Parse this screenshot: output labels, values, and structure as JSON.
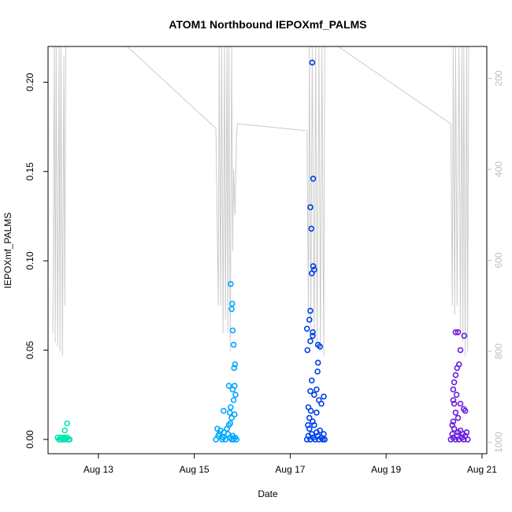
{
  "chart_data": {
    "type": "scatter",
    "title": "ATOM1 Northbound IEPOXmf_PALMS",
    "xlabel": "Date",
    "ylabel": "IEPOXmf_PALMS",
    "x_unit": "days in August 2016",
    "xlim": [
      11.95,
      21.1
    ],
    "ylim": [
      -0.008,
      0.22
    ],
    "x_ticks": [
      {
        "value": 13,
        "label": "Aug 13"
      },
      {
        "value": 15,
        "label": "Aug 15"
      },
      {
        "value": 17,
        "label": "Aug 17"
      },
      {
        "value": 19,
        "label": "Aug 19"
      },
      {
        "value": 21,
        "label": "Aug 21"
      }
    ],
    "y_ticks": [
      {
        "value": 0.0,
        "label": "0.00"
      },
      {
        "value": 0.05,
        "label": "0.05"
      },
      {
        "value": 0.1,
        "label": "0.10"
      },
      {
        "value": 0.15,
        "label": "0.15"
      },
      {
        "value": 0.2,
        "label": "0.20"
      }
    ],
    "secondary_y": {
      "label": "",
      "range_top": 130,
      "range_bottom": 1025,
      "reversed": true,
      "ticks": [
        200,
        400,
        600,
        800,
        1000
      ],
      "color": "#bebebe"
    },
    "grid": false,
    "legend": "none",
    "series": [
      {
        "color": "#00e5b0",
        "points": [
          [
            12.15,
            0.001
          ],
          [
            12.2,
            0.0
          ],
          [
            12.22,
            0.001
          ],
          [
            12.25,
            0.0
          ],
          [
            12.28,
            0.001
          ],
          [
            12.3,
            0.0
          ],
          [
            12.32,
            0.0
          ],
          [
            12.35,
            0.001
          ],
          [
            12.38,
            0.0
          ],
          [
            12.4,
            0.0
          ],
          [
            12.3,
            0.005
          ],
          [
            12.35,
            0.009
          ],
          [
            12.18,
            0.0
          ],
          [
            12.26,
            0.0
          ],
          [
            12.33,
            0.001
          ]
        ]
      },
      {
        "color": "#00a8ff",
        "points": [
          [
            15.45,
            0.0
          ],
          [
            15.5,
            0.002
          ],
          [
            15.55,
            0.005
          ],
          [
            15.6,
            0.001
          ],
          [
            15.62,
            0.004
          ],
          [
            15.65,
            0.0
          ],
          [
            15.7,
            0.003
          ],
          [
            15.72,
            0.008
          ],
          [
            15.75,
            0.001
          ],
          [
            15.78,
            0.0
          ],
          [
            15.8,
            0.002
          ],
          [
            15.82,
            0.0
          ],
          [
            15.85,
            0.001
          ],
          [
            15.88,
            0.0
          ],
          [
            15.48,
            0.006
          ],
          [
            15.52,
            0.003
          ],
          [
            15.58,
            0.0
          ],
          [
            15.68,
            0.006
          ],
          [
            15.74,
            0.015
          ],
          [
            15.76,
            0.018
          ],
          [
            15.78,
            0.012
          ],
          [
            15.8,
            0.028
          ],
          [
            15.82,
            0.022
          ],
          [
            15.84,
            0.03
          ],
          [
            15.86,
            0.025
          ],
          [
            15.72,
            0.03
          ],
          [
            15.83,
            0.04
          ],
          [
            15.85,
            0.042
          ],
          [
            15.82,
            0.053
          ],
          [
            15.8,
            0.061
          ],
          [
            15.78,
            0.073
          ],
          [
            15.79,
            0.076
          ],
          [
            15.76,
            0.087
          ],
          [
            15.61,
            0.016
          ],
          [
            15.75,
            0.009
          ],
          [
            15.84,
            0.014
          ]
        ]
      },
      {
        "color": "#0040e8",
        "points": [
          [
            17.35,
            0.0
          ],
          [
            17.38,
            0.002
          ],
          [
            17.4,
            0.006
          ],
          [
            17.42,
            0.0
          ],
          [
            17.45,
            0.003
          ],
          [
            17.48,
            0.001
          ],
          [
            17.5,
            0.008
          ],
          [
            17.52,
            0.0
          ],
          [
            17.55,
            0.004
          ],
          [
            17.58,
            0.002
          ],
          [
            17.6,
            0.0
          ],
          [
            17.62,
            0.005
          ],
          [
            17.65,
            0.001
          ],
          [
            17.68,
            0.0
          ],
          [
            17.7,
            0.003
          ],
          [
            17.72,
            0.0
          ],
          [
            17.37,
            0.008
          ],
          [
            17.4,
            0.012
          ],
          [
            17.43,
            0.016
          ],
          [
            17.47,
            0.01
          ],
          [
            17.55,
            0.015
          ],
          [
            17.6,
            0.022
          ],
          [
            17.65,
            0.02
          ],
          [
            17.7,
            0.024
          ],
          [
            17.38,
            0.018
          ],
          [
            17.42,
            0.027
          ],
          [
            17.45,
            0.033
          ],
          [
            17.5,
            0.025
          ],
          [
            17.55,
            0.028
          ],
          [
            17.57,
            0.038
          ],
          [
            17.58,
            0.043
          ],
          [
            17.36,
            0.05
          ],
          [
            17.42,
            0.055
          ],
          [
            17.47,
            0.058
          ],
          [
            17.62,
            0.052
          ],
          [
            17.58,
            0.053
          ],
          [
            17.35,
            0.062
          ],
          [
            17.4,
            0.067
          ],
          [
            17.47,
            0.06
          ],
          [
            17.42,
            0.072
          ],
          [
            17.5,
            0.095
          ],
          [
            17.45,
            0.093
          ],
          [
            17.48,
            0.097
          ],
          [
            17.44,
            0.118
          ],
          [
            17.42,
            0.13
          ],
          [
            17.48,
            0.146
          ],
          [
            17.46,
            0.211
          ]
        ]
      },
      {
        "color": "#6a1de0",
        "points": [
          [
            20.35,
            0.0
          ],
          [
            20.38,
            0.003
          ],
          [
            20.4,
            0.001
          ],
          [
            20.42,
            0.006
          ],
          [
            20.45,
            0.0
          ],
          [
            20.48,
            0.002
          ],
          [
            20.5,
            0.004
          ],
          [
            20.52,
            0.0
          ],
          [
            20.55,
            0.005
          ],
          [
            20.58,
            0.001
          ],
          [
            20.6,
            0.003
          ],
          [
            20.62,
            0.0
          ],
          [
            20.65,
            0.002
          ],
          [
            20.68,
            0.004
          ],
          [
            20.7,
            0.0
          ],
          [
            20.4,
            0.01
          ],
          [
            20.42,
            0.02
          ],
          [
            20.45,
            0.015
          ],
          [
            20.5,
            0.012
          ],
          [
            20.47,
            0.025
          ],
          [
            20.4,
            0.028
          ],
          [
            20.42,
            0.032
          ],
          [
            20.45,
            0.036
          ],
          [
            20.48,
            0.04
          ],
          [
            20.52,
            0.042
          ],
          [
            20.4,
            0.022
          ],
          [
            20.55,
            0.02
          ],
          [
            20.62,
            0.017
          ],
          [
            20.65,
            0.016
          ],
          [
            20.45,
            0.06
          ],
          [
            20.5,
            0.06
          ],
          [
            20.55,
            0.05
          ],
          [
            20.63,
            0.058
          ],
          [
            20.38,
            0.008
          ]
        ]
      }
    ],
    "altitude_line": {
      "color": "#cccccc",
      "points": [
        [
          12.05,
          760
        ],
        [
          12.08,
          120
        ],
        [
          12.1,
          780
        ],
        [
          12.12,
          120
        ],
        [
          12.15,
          790
        ],
        [
          12.18,
          130
        ],
        [
          12.2,
          800
        ],
        [
          12.22,
          120
        ],
        [
          12.25,
          810
        ],
        [
          12.28,
          150
        ],
        [
          12.3,
          700
        ],
        [
          12.32,
          120
        ],
        [
          13.6,
          120
        ],
        [
          15.45,
          310
        ],
        [
          15.5,
          700
        ],
        [
          15.52,
          120
        ],
        [
          15.55,
          700
        ],
        [
          15.57,
          120
        ],
        [
          15.6,
          760
        ],
        [
          15.63,
          120
        ],
        [
          15.65,
          730
        ],
        [
          15.68,
          130
        ],
        [
          15.7,
          760
        ],
        [
          15.72,
          125
        ],
        [
          15.75,
          800
        ],
        [
          15.78,
          120
        ],
        [
          15.8,
          580
        ],
        [
          15.82,
          400
        ],
        [
          15.85,
          500
        ],
        [
          15.88,
          330
        ],
        [
          15.9,
          300
        ],
        [
          17.35,
          315
        ],
        [
          17.38,
          720
        ],
        [
          17.4,
          125
        ],
        [
          17.43,
          750
        ],
        [
          17.46,
          120
        ],
        [
          17.5,
          770
        ],
        [
          17.53,
          125
        ],
        [
          17.56,
          790
        ],
        [
          17.6,
          120
        ],
        [
          17.63,
          800
        ],
        [
          17.66,
          120
        ],
        [
          17.7,
          810
        ],
        [
          17.72,
          130
        ],
        [
          18.0,
          120
        ],
        [
          20.35,
          300
        ],
        [
          20.38,
          700
        ],
        [
          20.4,
          125
        ],
        [
          20.43,
          720
        ],
        [
          20.45,
          130
        ],
        [
          20.48,
          700
        ],
        [
          20.52,
          120
        ],
        [
          20.55,
          760
        ],
        [
          20.58,
          125
        ],
        [
          20.6,
          780
        ],
        [
          20.62,
          120
        ],
        [
          20.65,
          810
        ],
        [
          20.68,
          130
        ],
        [
          20.7,
          800
        ],
        [
          20.72,
          120
        ]
      ]
    }
  }
}
